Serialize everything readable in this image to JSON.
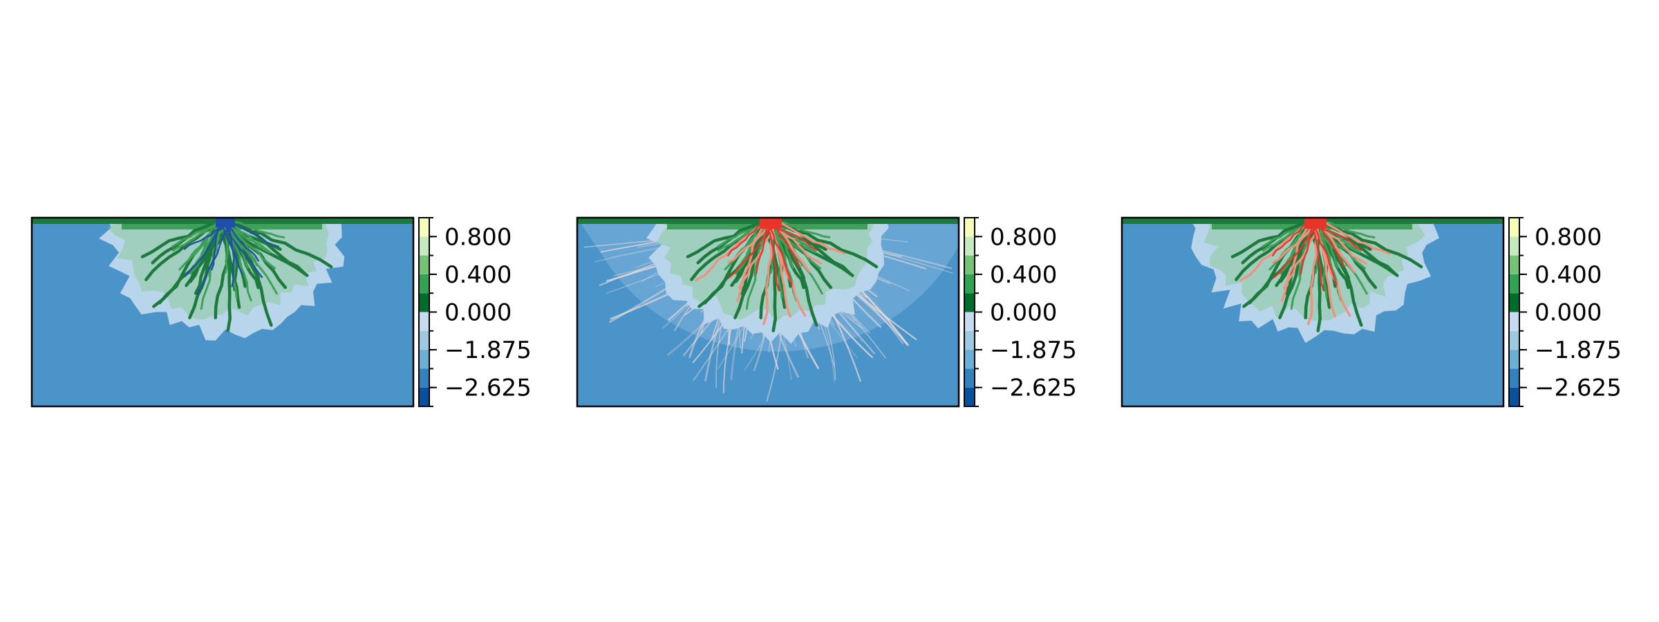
{
  "chart_data": [
    {
      "type": "heatmap",
      "panel": "left",
      "description_layer": "delta topography (land + submerged shelf)",
      "channel_overlay": {
        "color": "blue",
        "present": true
      },
      "colorbar": {
        "ticks": [
          "0.800",
          "0.400",
          "0.000",
          "−1.875",
          "−2.625"
        ],
        "tick_values": [
          0.8,
          0.4,
          0.0,
          -1.875,
          -2.625
        ],
        "bands": [
          {
            "from": -3.0,
            "to": -2.625,
            "color": "#08519c"
          },
          {
            "from": -2.625,
            "to": -2.25,
            "color": "#3182bd"
          },
          {
            "from": -2.25,
            "to": -1.875,
            "color": "#6baed6"
          },
          {
            "from": -1.875,
            "to": -1.5,
            "color": "#9ecae1"
          },
          {
            "from": -1.5,
            "to": 0.0,
            "color": "#c6dbef"
          },
          {
            "from": 0.0,
            "to": 0.2,
            "color": "#006d2c"
          },
          {
            "from": 0.2,
            "to": 0.4,
            "color": "#31a354"
          },
          {
            "from": 0.4,
            "to": 0.6,
            "color": "#74c476"
          },
          {
            "from": 0.6,
            "to": 0.8,
            "color": "#c7e9c0"
          },
          {
            "from": 0.8,
            "to": 1.0,
            "color": "#f7fcb9"
          }
        ],
        "range": [
          -3.0,
          1.0
        ]
      }
    },
    {
      "type": "heatmap",
      "panel": "middle",
      "description_layer": "delta topography with flow overlay",
      "channel_overlay": {
        "color": "red",
        "present": true,
        "plume": "semicircular fan"
      },
      "colorbar": {
        "ticks": [
          "0.800",
          "0.400",
          "0.000",
          "−1.875",
          "−2.625"
        ],
        "tick_values": [
          0.8,
          0.4,
          0.0,
          -1.875,
          -2.625
        ],
        "range": [
          -3.0,
          1.0
        ]
      }
    },
    {
      "type": "heatmap",
      "panel": "right",
      "description_layer": "delta topography with channel overlay",
      "channel_overlay": {
        "color": "red",
        "present": true
      },
      "colorbar": {
        "ticks": [
          "0.800",
          "0.400",
          "0.000",
          "−1.875",
          "−2.625"
        ],
        "tick_values": [
          0.8,
          0.4,
          0.0,
          -1.875,
          -2.625
        ],
        "range": [
          -3.0,
          1.0
        ]
      }
    }
  ],
  "colors": {
    "basin": "#4a94c9",
    "shelf": "#b9d5ec",
    "land_dark": "#1d7a3c",
    "land_mid": "#3fa05a",
    "land_light": "#84c88a",
    "channel_blue": "#1f4fa8",
    "channel_red": "#e8352a",
    "plume": "#fbe2da"
  }
}
